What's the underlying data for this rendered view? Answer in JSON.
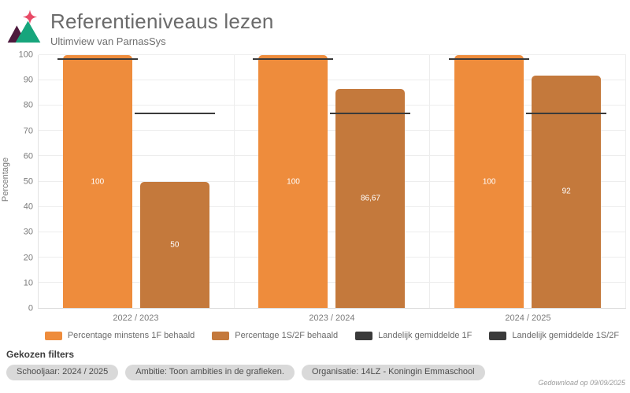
{
  "header": {
    "title": "Referentieniveaus lezen",
    "subtitle": "Ultimview van ParnasSys",
    "logo": "ultimview-mountain-star-logo",
    "logo_colors": {
      "star": "#e84a66",
      "left_triangle": "#4d1a3d",
      "right_triangle": "#17a57c"
    }
  },
  "chart_data": {
    "type": "bar",
    "title": "Referentieniveaus lezen",
    "xlabel": "",
    "ylabel": "Percentage",
    "ylim": [
      0,
      100
    ],
    "ytick_step": 10,
    "grid": true,
    "categories": [
      "2022 / 2023",
      "2023 / 2024",
      "2024 / 2025"
    ],
    "series": [
      {
        "name": "Percentage minstens 1F behaald",
        "color": "#ee8c3c",
        "values": [
          100,
          100,
          100
        ],
        "labels": [
          "100",
          "100",
          "100"
        ]
      },
      {
        "name": "Percentage 1S/2F behaald",
        "color": "#c4793c",
        "values": [
          50,
          86.67,
          92
        ],
        "labels": [
          "50",
          "86,67",
          "92"
        ]
      }
    ],
    "reference_lines": [
      {
        "name": "Landelijk gemiddelde 1F",
        "color": "#3a3a3a",
        "value": 98.5,
        "over_series": 0
      },
      {
        "name": "Landelijk gemiddelde 1S/2F",
        "color": "#3a3a3a",
        "value": 77,
        "over_series": 1
      }
    ],
    "legend": [
      {
        "label": "Percentage minstens 1F behaald",
        "color": "#ee8c3c"
      },
      {
        "label": "Percentage 1S/2F behaald",
        "color": "#c4793c"
      },
      {
        "label": "Landelijk gemiddelde 1F",
        "color": "#3a3a3a"
      },
      {
        "label": "Landelijk gemiddelde 1S/2F",
        "color": "#3a3a3a"
      }
    ],
    "legend_position": "bottom"
  },
  "filters": {
    "heading": "Gekozen filters",
    "pills": [
      "Schooljaar: 2024 / 2025",
      "Ambitie: Toon ambities in de grafieken.",
      "Organisatie: 14LZ - Koningin Emmaschool"
    ]
  },
  "footer": {
    "downloaded": "Gedownload op 09/09/2025"
  }
}
